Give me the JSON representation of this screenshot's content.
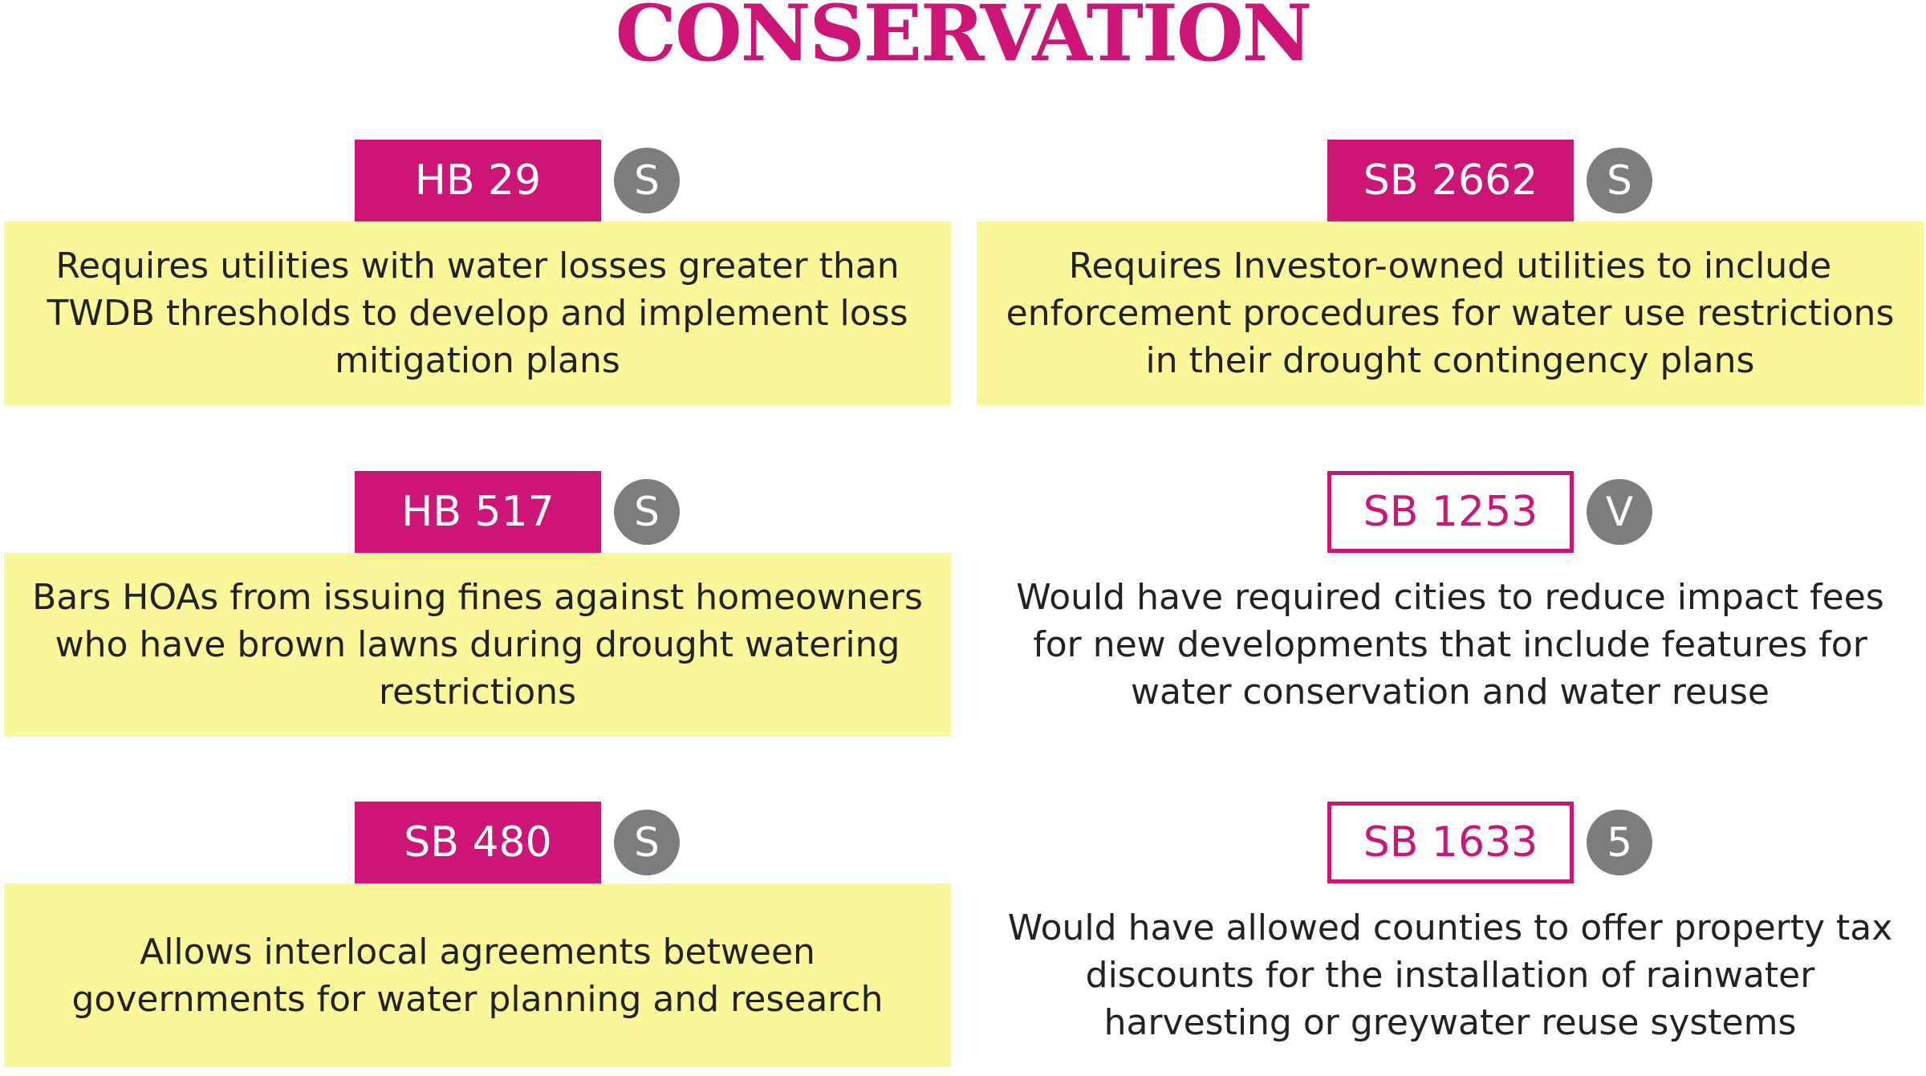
{
  "title": "CONSERVATION",
  "colors": {
    "accent": "#cc1574",
    "highlight": "#fbf79b",
    "status_circle": "#7d7d7d",
    "text": "#222222"
  },
  "bills": [
    {
      "id": "HB 29",
      "status": "S",
      "style": "filled",
      "highlighted": true,
      "description": "Requires utilities with water losses greater than TWDB thresholds to develop and implement loss mitigation plans"
    },
    {
      "id": "SB 2662",
      "status": "S",
      "style": "filled",
      "highlighted": true,
      "description": "Requires Investor-owned utilities to include enforcement procedures for water use restrictions in their drought contingency plans"
    },
    {
      "id": "HB 517",
      "status": "S",
      "style": "filled",
      "highlighted": true,
      "description": "Bars HOAs from issuing fines against homeowners who have brown lawns during drought watering restrictions"
    },
    {
      "id": "SB 1253",
      "status": "V",
      "style": "outline",
      "highlighted": false,
      "description": "Would have required cities to reduce impact fees for new developments that include features for water conservation and water reuse"
    },
    {
      "id": "SB 480",
      "status": "S",
      "style": "filled",
      "highlighted": true,
      "description": "Allows interlocal agreements between governments for water planning and research"
    },
    {
      "id": "SB 1633",
      "status": "5",
      "style": "outline",
      "highlighted": false,
      "description": "Would have allowed counties to offer property tax discounts for the installation of rainwater harvesting or greywater reuse systems"
    }
  ]
}
